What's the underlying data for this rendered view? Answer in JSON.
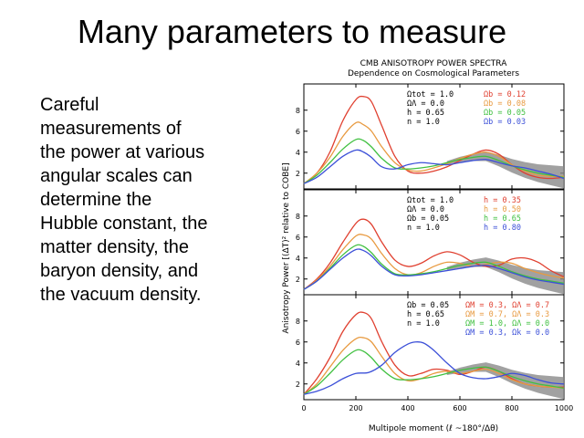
{
  "slide": {
    "title": "Many parameters to measure",
    "body_lines": [
      "Careful",
      "measurements of",
      "the power at various",
      "angular scales can",
      "determine the",
      "Hubble constant, the",
      "matter density, the",
      "baryon density, and",
      "the vacuum density."
    ]
  },
  "chart_data": {
    "type": "line",
    "title": "CMB ANISOTROPY POWER SPECTRA",
    "subtitle": "Dependence on Cosmological Parameters",
    "xlabel": "Multipole moment (ℓ ~180°/Δθ)",
    "ylabel": "Anisotropy Power [(ΔT)² relative to COBE]",
    "xlim": [
      0,
      1000
    ],
    "xticks": [
      "0",
      "200",
      "400",
      "600",
      "800",
      "1000"
    ],
    "panels": [
      {
        "ylim": [
          0.5,
          10.5
        ],
        "yticks": [
          "2",
          "4",
          "6",
          "8"
        ],
        "fixed_params": [
          "Ωtot = 1.0",
          "ΩΛ = 0.0",
          "h = 0.65",
          "n = 1.0"
        ],
        "series": [
          {
            "name": "Ωb = 0.12",
            "color": "#e04030",
            "x": [
              0,
              50,
              100,
              150,
              200,
              230,
              260,
              300,
              350,
              400,
              450,
              500,
              550,
              600,
              650,
              700,
              750,
              800,
              850,
              900,
              950,
              1000
            ],
            "values": [
              1.0,
              2.0,
              4.0,
              7.0,
              9.0,
              9.3,
              8.8,
              6.5,
              3.6,
              2.2,
              2.0,
              2.2,
              2.6,
              3.2,
              3.8,
              4.2,
              3.8,
              2.8,
              2.0,
              1.6,
              1.5,
              1.6
            ]
          },
          {
            "name": "Ωb = 0.08",
            "color": "#e89a40",
            "x": [
              0,
              50,
              100,
              150,
              200,
              230,
              260,
              300,
              350,
              400,
              450,
              500,
              550,
              600,
              650,
              700,
              750,
              800,
              850,
              900,
              950,
              1000
            ],
            "values": [
              1.0,
              2.0,
              3.5,
              5.5,
              6.8,
              6.6,
              6.0,
              4.5,
              3.0,
              2.3,
              2.2,
              2.5,
              2.9,
              3.4,
              3.8,
              4.0,
              3.6,
              2.8,
              2.2,
              1.8,
              1.7,
              1.7
            ]
          },
          {
            "name": "Ωb = 0.05",
            "color": "#40c040",
            "x": [
              0,
              50,
              100,
              150,
              200,
              230,
              260,
              300,
              350,
              400,
              450,
              500,
              550,
              600,
              650,
              700,
              750,
              800,
              850,
              900,
              950,
              1000
            ],
            "values": [
              1.0,
              1.8,
              3.0,
              4.3,
              5.2,
              5.1,
              4.5,
              3.4,
              2.5,
              2.4,
              2.5,
              2.7,
              3.0,
              3.3,
              3.5,
              3.6,
              3.2,
              2.7,
              2.3,
              2.0,
              1.8,
              1.6
            ]
          },
          {
            "name": "Ωb = 0.03",
            "color": "#3c50d8",
            "x": [
              0,
              50,
              100,
              150,
              200,
              230,
              260,
              300,
              350,
              400,
              450,
              500,
              550,
              600,
              650,
              700,
              750,
              800,
              850,
              900,
              950,
              1000
            ],
            "values": [
              1.0,
              1.6,
              2.6,
              3.6,
              4.2,
              4.0,
              3.5,
              2.6,
              2.4,
              2.8,
              3.0,
              2.9,
              2.8,
              3.0,
              3.2,
              3.3,
              3.0,
              2.7,
              2.5,
              2.2,
              1.9,
              1.5
            ]
          }
        ]
      },
      {
        "ylim": [
          0.5,
          10.5
        ],
        "yticks": [
          "2",
          "4",
          "6",
          "8"
        ],
        "fixed_params": [
          "Ωtot = 1.0",
          "ΩΛ = 0.0",
          "Ωb = 0.05",
          "n = 1.0"
        ],
        "series": [
          {
            "name": "h = 0.35",
            "color": "#e04030",
            "x": [
              0,
              50,
              100,
              150,
              200,
              230,
              260,
              300,
              350,
              400,
              450,
              500,
              550,
              600,
              650,
              700,
              750,
              800,
              850,
              900,
              950,
              1000
            ],
            "values": [
              1.0,
              2.0,
              3.5,
              5.5,
              7.3,
              7.7,
              7.2,
              5.5,
              3.8,
              3.2,
              3.5,
              4.2,
              4.6,
              4.3,
              3.6,
              3.2,
              3.3,
              3.9,
              4.0,
              3.6,
              2.8,
              2.2
            ]
          },
          {
            "name": "h = 0.50",
            "color": "#e89a40",
            "x": [
              0,
              50,
              100,
              150,
              200,
              230,
              260,
              300,
              350,
              400,
              450,
              500,
              550,
              600,
              650,
              700,
              750,
              800,
              850,
              900,
              950,
              1000
            ],
            "values": [
              1.0,
              1.9,
              3.2,
              4.8,
              6.1,
              6.2,
              5.8,
              4.4,
              3.0,
              2.4,
              2.6,
              3.2,
              3.6,
              3.5,
              3.2,
              3.4,
              3.6,
              3.5,
              3.0,
              2.6,
              2.3,
              2.1
            ]
          },
          {
            "name": "h = 0.65",
            "color": "#40c040",
            "x": [
              0,
              50,
              100,
              150,
              200,
              230,
              260,
              300,
              350,
              400,
              450,
              500,
              550,
              600,
              650,
              700,
              750,
              800,
              850,
              900,
              950,
              1000
            ],
            "values": [
              1.0,
              1.8,
              3.0,
              4.3,
              5.2,
              5.1,
              4.5,
              3.4,
              2.5,
              2.4,
              2.5,
              2.7,
              3.0,
              3.3,
              3.5,
              3.6,
              3.2,
              2.7,
              2.3,
              2.0,
              1.8,
              1.6
            ]
          },
          {
            "name": "h = 0.80",
            "color": "#3c50d8",
            "x": [
              0,
              50,
              100,
              150,
              200,
              230,
              260,
              300,
              350,
              400,
              450,
              500,
              550,
              600,
              650,
              700,
              750,
              800,
              850,
              900,
              950,
              1000
            ],
            "values": [
              1.0,
              1.8,
              2.9,
              4.0,
              4.8,
              4.7,
              4.2,
              3.2,
              2.4,
              2.3,
              2.4,
              2.6,
              2.8,
              3.0,
              3.2,
              3.3,
              3.0,
              2.6,
              2.2,
              1.9,
              1.7,
              1.5
            ]
          }
        ]
      },
      {
        "ylim": [
          0.5,
          10.5
        ],
        "yticks": [
          "2",
          "4",
          "6",
          "8"
        ],
        "fixed_params": [
          "Ωb = 0.05",
          "h = 0.65",
          "n = 1.0"
        ],
        "series": [
          {
            "name": "ΩM = 0.3, ΩΛ = 0.7",
            "color": "#e04030",
            "x": [
              0,
              50,
              100,
              150,
              200,
              230,
              260,
              300,
              350,
              400,
              450,
              500,
              550,
              600,
              650,
              700,
              750,
              800,
              850,
              900,
              950,
              1000
            ],
            "values": [
              1.0,
              2.5,
              4.5,
              7.0,
              8.6,
              8.8,
              8.2,
              6.0,
              3.8,
              2.8,
              3.0,
              3.4,
              3.3,
              2.9,
              3.2,
              3.6,
              3.2,
              2.5,
              2.0,
              1.8,
              1.7,
              1.7
            ]
          },
          {
            "name": "ΩM = 0.7, ΩΛ = 0.3",
            "color": "#e89a40",
            "x": [
              0,
              50,
              100,
              150,
              200,
              230,
              260,
              300,
              350,
              400,
              450,
              500,
              550,
              600,
              650,
              700,
              750,
              800,
              850,
              900,
              950,
              1000
            ],
            "values": [
              1.0,
              2.0,
              3.6,
              5.2,
              6.3,
              6.4,
              6.0,
              4.6,
              3.0,
              2.3,
              2.5,
              3.0,
              3.2,
              3.0,
              3.2,
              3.4,
              3.0,
              2.4,
              2.0,
              1.8,
              1.7,
              1.6
            ]
          },
          {
            "name": "ΩM = 1.0, ΩΛ = 0.0",
            "color": "#40c040",
            "x": [
              0,
              50,
              100,
              150,
              200,
              230,
              260,
              300,
              350,
              400,
              450,
              500,
              550,
              600,
              650,
              700,
              750,
              800,
              850,
              900,
              950,
              1000
            ],
            "values": [
              1.0,
              1.8,
              3.0,
              4.3,
              5.2,
              5.1,
              4.5,
              3.4,
              2.5,
              2.4,
              2.5,
              2.7,
              3.0,
              3.3,
              3.5,
              3.6,
              3.2,
              2.7,
              2.3,
              2.0,
              1.8,
              1.6
            ]
          },
          {
            "name": "ΩM = 0.3, Ωk = 0.0",
            "color": "#3c50d8",
            "x": [
              0,
              50,
              100,
              150,
              200,
              250,
              300,
              350,
              400,
              430,
              460,
              500,
              550,
              600,
              650,
              700,
              750,
              800,
              850,
              900,
              950,
              1000
            ],
            "values": [
              1.0,
              1.3,
              1.8,
              2.5,
              3.0,
              3.1,
              3.8,
              5.0,
              5.8,
              6.0,
              5.9,
              5.2,
              4.0,
              3.0,
              2.6,
              2.5,
              2.7,
              3.0,
              2.8,
              2.4,
              2.1,
              2.0
            ]
          }
        ]
      }
    ]
  }
}
